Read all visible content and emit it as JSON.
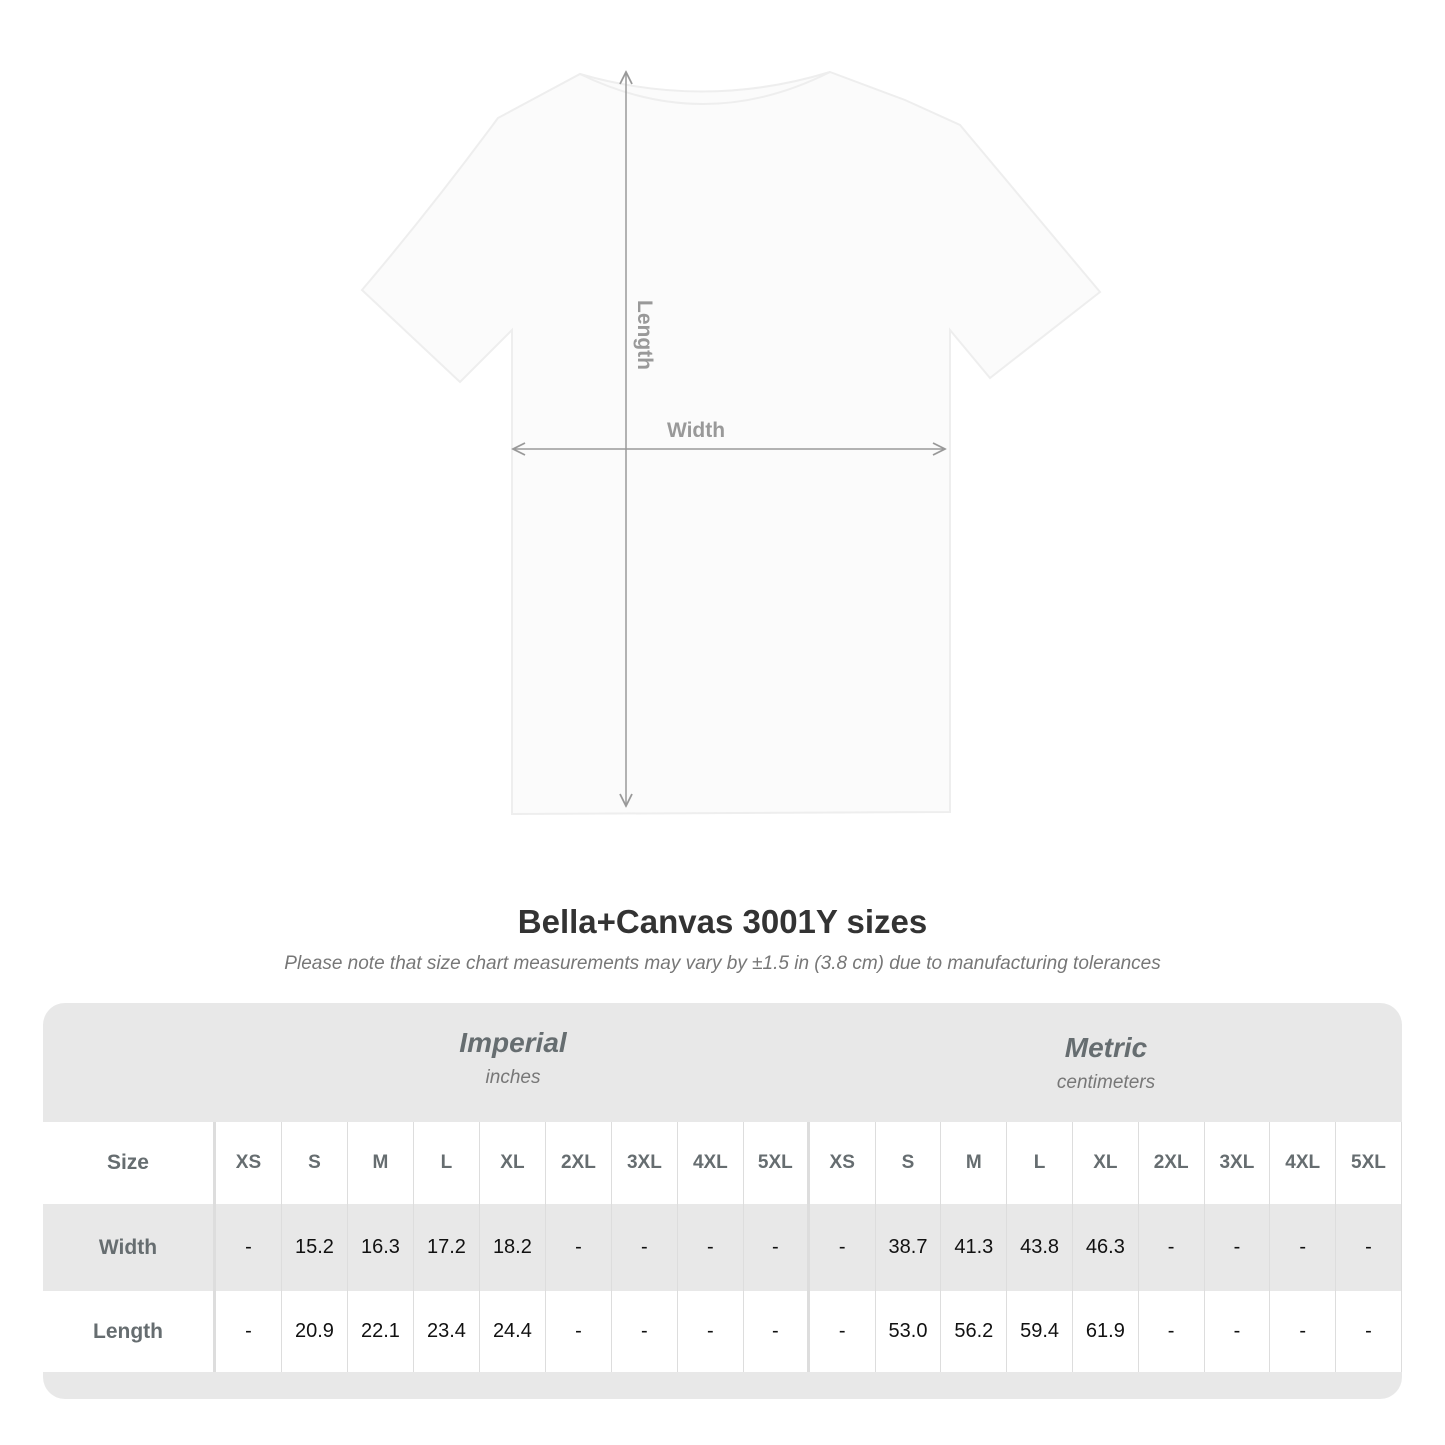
{
  "diagram": {
    "length_label": "Length",
    "width_label": "Width"
  },
  "title": "Bella+Canvas 3001Y sizes",
  "subtitle": "Please note that size chart measurements may vary by ±1.5 in (3.8 cm) due to manufacturing tolerances",
  "imperial": {
    "name": "Imperial",
    "unit": "inches"
  },
  "metric": {
    "name": "Metric",
    "unit": "centimeters"
  },
  "table": {
    "header_label": "Size",
    "sizes": [
      "XS",
      "S",
      "M",
      "L",
      "XL",
      "2XL",
      "3XL",
      "4XL",
      "5XL"
    ],
    "rows": [
      {
        "label": "Width",
        "imperial": [
          "-",
          "15.2",
          "16.3",
          "17.2",
          "18.2",
          "-",
          "-",
          "-",
          "-"
        ],
        "metric": [
          "-",
          "38.7",
          "41.3",
          "43.8",
          "46.3",
          "-",
          "-",
          "-",
          "-"
        ]
      },
      {
        "label": "Length",
        "imperial": [
          "-",
          "20.9",
          "22.1",
          "23.4",
          "24.4",
          "-",
          "-",
          "-",
          "-"
        ],
        "metric": [
          "-",
          "53.0",
          "56.2",
          "59.4",
          "61.9",
          "-",
          "-",
          "-",
          "-"
        ]
      }
    ]
  },
  "colors": {
    "panel": "#e8e8e8",
    "heading": "#666d70",
    "arrow": "#999999"
  }
}
